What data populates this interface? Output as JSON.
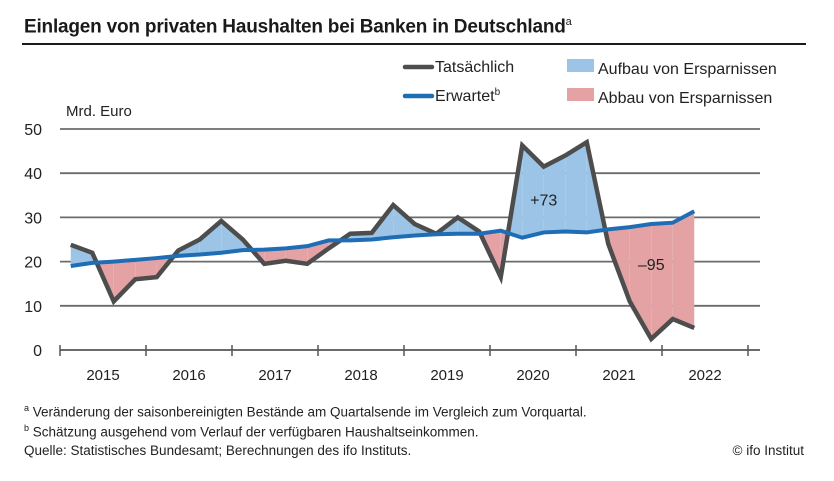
{
  "title": "Einlagen von privaten Haushalten bei Banken in Deutschland",
  "title_sup": "a",
  "chart_data": {
    "type": "area",
    "title": "Einlagen von privaten Haushalten bei Banken in Deutschland",
    "ylabel": "Mrd. Euro",
    "xlabel": "",
    "ylim": [
      0,
      50
    ],
    "yticks": [
      0,
      10,
      20,
      30,
      40,
      50
    ],
    "grid": true,
    "x_tick_labels": [
      "2015",
      "2016",
      "2017",
      "2018",
      "2019",
      "2020",
      "2021",
      "2022"
    ],
    "quarters": [
      "2015Q1",
      "2015Q2",
      "2015Q3",
      "2015Q4",
      "2016Q1",
      "2016Q2",
      "2016Q3",
      "2016Q4",
      "2017Q1",
      "2017Q2",
      "2017Q3",
      "2017Q4",
      "2018Q1",
      "2018Q2",
      "2018Q3",
      "2018Q4",
      "2019Q1",
      "2019Q2",
      "2019Q3",
      "2019Q4",
      "2020Q1",
      "2020Q2",
      "2020Q3",
      "2020Q4",
      "2021Q1",
      "2021Q2",
      "2021Q3",
      "2021Q4",
      "2022Q1",
      "2022Q2"
    ],
    "series": [
      {
        "name": "Tatsächlich",
        "color": "#4d4d4d",
        "values": [
          23.8,
          22.0,
          11.0,
          16.0,
          16.5,
          22.5,
          25.0,
          29.2,
          25.0,
          19.5,
          20.2,
          19.5,
          23.0,
          26.3,
          26.5,
          32.8,
          28.5,
          26.3,
          30.0,
          26.8,
          16.5,
          46.3,
          41.5,
          44.0,
          47.0,
          24.0,
          11.0,
          2.5,
          7.0,
          5.0
        ]
      },
      {
        "name": "Erwartet",
        "name_sup": "b",
        "color": "#1f6db5",
        "values": [
          19.0,
          19.7,
          20.0,
          20.4,
          20.8,
          21.3,
          21.6,
          22.0,
          22.6,
          22.7,
          23.0,
          23.5,
          24.8,
          24.8,
          25.0,
          25.5,
          25.9,
          26.2,
          26.3,
          26.3,
          27.0,
          25.4,
          26.6,
          26.8,
          26.6,
          27.3,
          27.8,
          28.5,
          28.8,
          31.4
        ]
      }
    ],
    "fills": [
      {
        "name": "Aufbau von Ersparnissen",
        "color": "#9cc4e6",
        "meaning": "Tatsächlich above Erwartet"
      },
      {
        "name": "Abbau von Ersparnissen",
        "color": "#e4a2a4",
        "meaning": "Tatsächlich below Erwartet"
      }
    ],
    "annotations": [
      {
        "text": "+73",
        "x": "2020Q3",
        "y": 34
      },
      {
        "text": "–95",
        "x": "2021Q4",
        "y": 19.5
      }
    ],
    "legend": [
      {
        "label": "Tatsächlich",
        "type": "line",
        "color": "#4d4d4d"
      },
      {
        "label": "Erwartet",
        "sup": "b",
        "type": "line",
        "color": "#1f6db5"
      },
      {
        "label": "Aufbau von Ersparnissen",
        "type": "patch",
        "color": "#9cc4e6"
      },
      {
        "label": "Abbau von Ersparnissen",
        "type": "patch",
        "color": "#e4a2a4"
      }
    ],
    "legend_position": "top-right"
  },
  "footnotes": {
    "a_marker": "a",
    "a": "Veränderung der saisonbereinigten Bestände am Quartalsende im Vergleich zum Vorquartal.",
    "b_marker": "b",
    "b": "Schätzung ausgehend vom Verlauf der verfügbaren Haushaltseinkommen.",
    "source": "Quelle: Statistisches Bundesamt; Berechnungen des ifo Instituts."
  },
  "copyright": "© ifo Institut"
}
